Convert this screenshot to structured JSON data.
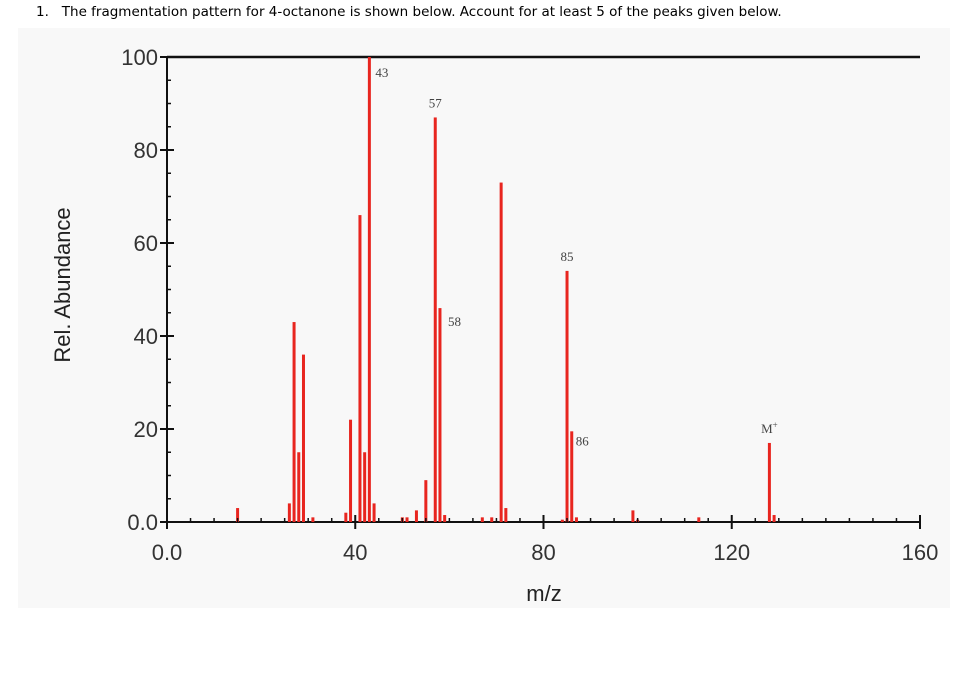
{
  "question": {
    "number": "1.",
    "text": "The fragmentation pattern for 4-octanone is shown below. Account for at least 5 of the peaks given below."
  },
  "chart_data": {
    "type": "bar",
    "title": "",
    "xlabel": "m/z",
    "ylabel": "Rel. Abundance",
    "xlim": [
      0,
      160
    ],
    "ylim": [
      0,
      100
    ],
    "x_ticks": [
      0,
      40,
      80,
      120,
      160
    ],
    "x_tick_labels": [
      "0.0",
      "40",
      "80",
      "120",
      "160"
    ],
    "y_ticks": [
      0,
      20,
      40,
      60,
      80,
      100
    ],
    "y_tick_labels": [
      "0.0",
      "20",
      "40",
      "60",
      "80",
      "100"
    ],
    "grid": false,
    "bar_color": "#e8251f",
    "peaks": [
      {
        "x": 15,
        "y": 3
      },
      {
        "x": 26,
        "y": 4
      },
      {
        "x": 27,
        "y": 43
      },
      {
        "x": 28,
        "y": 15
      },
      {
        "x": 29,
        "y": 36
      },
      {
        "x": 31,
        "y": 1
      },
      {
        "x": 38,
        "y": 2
      },
      {
        "x": 39,
        "y": 22
      },
      {
        "x": 41,
        "y": 66
      },
      {
        "x": 42,
        "y": 15
      },
      {
        "x": 43,
        "y": 100
      },
      {
        "x": 44,
        "y": 4
      },
      {
        "x": 50,
        "y": 1
      },
      {
        "x": 51,
        "y": 1
      },
      {
        "x": 53,
        "y": 2.5
      },
      {
        "x": 55,
        "y": 9
      },
      {
        "x": 57,
        "y": 87
      },
      {
        "x": 58,
        "y": 46
      },
      {
        "x": 59,
        "y": 1.5
      },
      {
        "x": 67,
        "y": 1
      },
      {
        "x": 69,
        "y": 1
      },
      {
        "x": 71,
        "y": 73
      },
      {
        "x": 72,
        "y": 3
      },
      {
        "x": 84,
        "y": 0.5
      },
      {
        "x": 85,
        "y": 54
      },
      {
        "x": 86,
        "y": 19.5
      },
      {
        "x": 87,
        "y": 1
      },
      {
        "x": 99,
        "y": 2.5
      },
      {
        "x": 100,
        "y": 0.5
      },
      {
        "x": 113,
        "y": 1
      },
      {
        "x": 128,
        "y": 17
      },
      {
        "x": 129,
        "y": 1.5
      }
    ],
    "annotations": [
      {
        "text": "43",
        "x": 43,
        "y": 100
      },
      {
        "text": "57",
        "x": 57,
        "y": 87
      },
      {
        "text": "58",
        "x": 58,
        "y": 46
      },
      {
        "text": "85",
        "x": 85,
        "y": 54
      },
      {
        "text": "86",
        "x": 86,
        "y": 19.5
      },
      {
        "text": "M",
        "sup": "+",
        "x": 128,
        "y": 17
      }
    ]
  }
}
